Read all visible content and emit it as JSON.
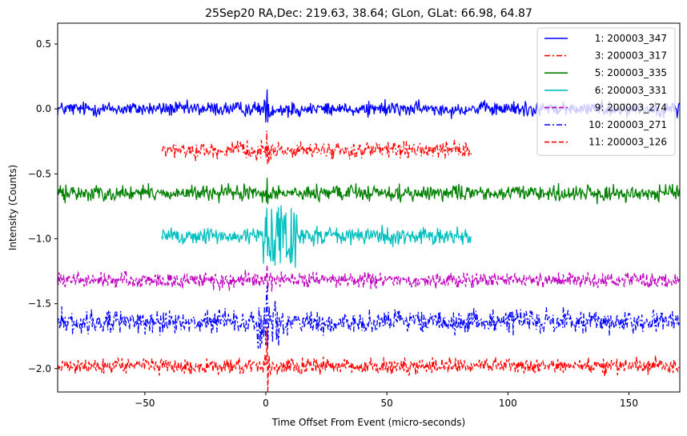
{
  "chart_data": {
    "type": "line",
    "title": "25Sep20 RA,Dec:  219.63,  38.64; GLon, GLat:   66.98,  64.87",
    "xlabel": "Time Offset From Event (micro-seconds)",
    "ylabel": "Intensity (Counts)",
    "xlim": [
      -86,
      171
    ],
    "ylim": [
      -2.18,
      0.66
    ],
    "xticks": [
      -50,
      0,
      50,
      100,
      150
    ],
    "xtick_labels": [
      "−50",
      "0",
      "50",
      "100",
      "150"
    ],
    "yticks": [
      0.5,
      0.0,
      -0.5,
      -1.0,
      -1.5,
      -2.0
    ],
    "ytick_labels": [
      "0.5",
      "0.0",
      "−0.5",
      "−1.0",
      "−1.5",
      "−2.0"
    ],
    "grid": false,
    "legend_position": "top-right",
    "series": [
      {
        "name": "1: 200003_347",
        "color": "#0000ff",
        "dash": "solid",
        "baseline": 0.0,
        "noise": 0.028,
        "x_range": [
          -86,
          171
        ],
        "spike": {
          "x": 0.5,
          "height": 0.15
        },
        "burst": {
          "x0": -1,
          "x1": 3,
          "amp": 0.05
        }
      },
      {
        "name": "3: 200003_317",
        "color": "#ff0000",
        "dash": "dashdot",
        "baseline": -0.32,
        "noise": 0.03,
        "x_range": [
          -43,
          85
        ],
        "spike": {
          "x": 0.5,
          "height": 0.15
        },
        "burst": {
          "x0": -1,
          "x1": 3,
          "amp": 0.05
        }
      },
      {
        "name": "5: 200003_335",
        "color": "#008000",
        "dash": "solid",
        "baseline": -0.65,
        "noise": 0.03,
        "x_range": [
          -86,
          171
        ],
        "spike": {
          "x": 0.5,
          "height": 0.12
        },
        "burst": {
          "x0": -1,
          "x1": 3,
          "amp": 0.05
        }
      },
      {
        "name": "6: 200003_331",
        "color": "#00bfbf",
        "dash": "solid",
        "baseline": -0.98,
        "noise": 0.032,
        "x_range": [
          -43,
          85
        ],
        "spike": {
          "x": 0.5,
          "height": 0.22
        },
        "burst": {
          "x0": -1,
          "x1": 13,
          "amp": 0.22
        }
      },
      {
        "name": "9: 200003_274",
        "color": "#bf00bf",
        "dash": "dashed",
        "baseline": -1.32,
        "noise": 0.03,
        "x_range": [
          -86,
          171
        ],
        "spike": {
          "x": 0.5,
          "height": 0.12
        },
        "burst": {
          "x0": -1,
          "x1": 3,
          "amp": 0.05
        }
      },
      {
        "name": "10: 200003_271",
        "color": "#0000ff",
        "dash": "dashdot",
        "baseline": -1.64,
        "noise": 0.045,
        "x_range": [
          -86,
          171
        ],
        "spike": {
          "x": 0.5,
          "height": 0.28
        },
        "burst": {
          "x0": -4,
          "x1": 6,
          "amp": 0.22
        }
      },
      {
        "name": "11: 200003_126",
        "color": "#ff0000",
        "dash": "dashed",
        "baseline": -1.98,
        "noise": 0.03,
        "x_range": [
          -86,
          171
        ],
        "spike": {
          "x": 0.5,
          "height": 0.3
        },
        "burst": {
          "x0": -1,
          "x1": 3,
          "amp": 0.05
        }
      }
    ]
  }
}
